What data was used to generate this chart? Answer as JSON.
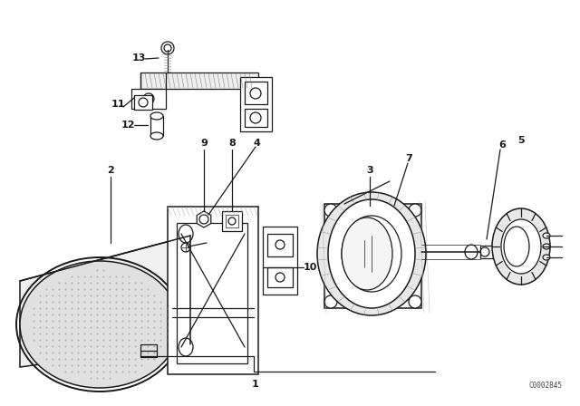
{
  "background_color": "#ffffff",
  "diagram_color": "#1a1a1a",
  "watermark": "C0002845",
  "fig_w": 6.4,
  "fig_h": 4.48,
  "dpi": 100
}
